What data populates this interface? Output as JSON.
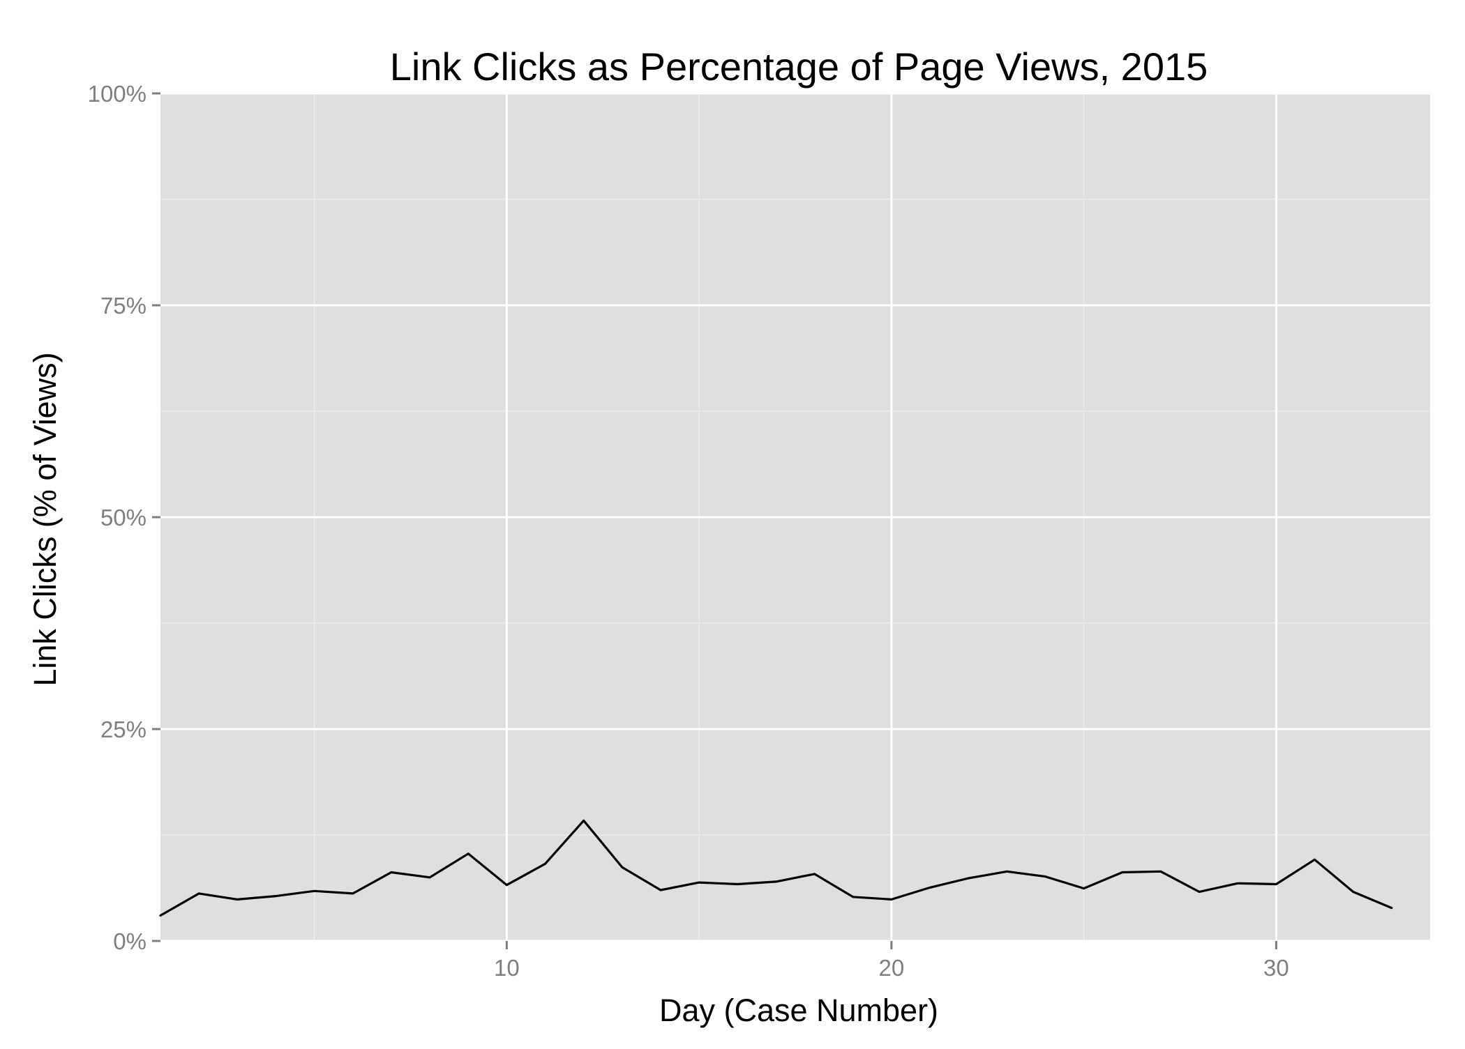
{
  "chart_data": {
    "type": "line",
    "title": "Link Clicks as Percentage of Page Views, 2015",
    "xlabel": "Day (Case Number)",
    "ylabel": "Link Clicks (% of Views)",
    "xlim": [
      1,
      34
    ],
    "ylim": [
      0,
      100
    ],
    "x_ticks": [
      10,
      20,
      30
    ],
    "x_tick_labels": [
      "10",
      "20",
      "30"
    ],
    "y_ticks": [
      0,
      25,
      50,
      75,
      100
    ],
    "y_tick_labels": [
      "0%",
      "25%",
      "50%",
      "75%",
      "100%"
    ],
    "grid": true,
    "legend": "none",
    "series": [
      {
        "x": [
          1,
          2,
          3,
          4,
          5,
          6,
          7,
          8,
          9,
          10,
          11,
          12,
          13,
          14,
          15,
          16,
          17,
          18,
          19,
          20,
          21,
          22,
          23,
          24,
          25,
          26,
          27,
          28,
          29,
          30,
          31,
          32,
          33
        ],
        "values": [
          3.0,
          5.6,
          4.9,
          5.3,
          5.9,
          5.6,
          8.1,
          7.5,
          10.3,
          6.6,
          9.1,
          14.2,
          8.7,
          6.0,
          6.9,
          6.7,
          7.0,
          7.9,
          5.2,
          4.9,
          6.3,
          7.4,
          8.2,
          7.6,
          6.2,
          8.1,
          8.2,
          5.8,
          6.8,
          6.7,
          9.6,
          5.8,
          3.9
        ]
      }
    ]
  },
  "colors": {
    "panel_background": "#dfdfdf",
    "major_grid": "#ffffff",
    "minor_grid": "#ececec",
    "line": "#000000",
    "tick_text": "#7f7f7f",
    "axis_tick": "#7f7f7f"
  }
}
